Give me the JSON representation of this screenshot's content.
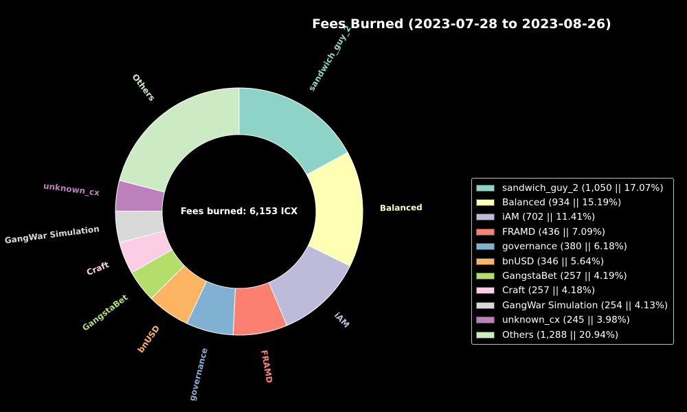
{
  "chart_data": {
    "type": "pie",
    "style": "donut",
    "title": "Fees Burned (2023-07-28 to 2023-08-26)",
    "center_label": "Fees burned: 6,153 ICX",
    "slices": [
      {
        "label": "sandwich_guy_2",
        "legend": "sandwich_guy_2 (1,050 || 17.07%)",
        "value": 1050,
        "percent": 17.07,
        "color": "#8dd3c7"
      },
      {
        "label": "Balanced",
        "legend": "Balanced (934 || 15.19%)",
        "value": 934,
        "percent": 15.19,
        "color": "#ffffb3"
      },
      {
        "label": "iAM",
        "legend": "iAM  (702 || 11.41%)",
        "value": 702,
        "percent": 11.41,
        "color": "#bebada"
      },
      {
        "label": "FRAMD",
        "legend": "FRAMD (436 || 7.09%)",
        "value": 436,
        "percent": 7.09,
        "color": "#fb8072"
      },
      {
        "label": "governance",
        "legend": "governance (380 || 6.18%)",
        "value": 380,
        "percent": 6.18,
        "color": "#80b1d3"
      },
      {
        "label": "bnUSD",
        "legend": "bnUSD (346 || 5.64%)",
        "value": 346,
        "percent": 5.64,
        "color": "#fdb462"
      },
      {
        "label": "GangstaBet",
        "legend": "GangstaBet (257 || 4.19%)",
        "value": 257,
        "percent": 4.19,
        "color": "#b3de69"
      },
      {
        "label": "Craft",
        "legend": "Craft (257 || 4.18%)",
        "value": 257,
        "percent": 4.18,
        "color": "#fccde5"
      },
      {
        "label": "GangWar Simulation",
        "legend": "GangWar Simulation (254 || 4.13%)",
        "value": 254,
        "percent": 4.13,
        "color": "#d9d9d9"
      },
      {
        "label": "unknown_cx",
        "legend": "unknown_cx (245 || 3.98%)",
        "value": 245,
        "percent": 3.98,
        "color": "#bc80bd"
      },
      {
        "label": "Others",
        "legend": "Others (1,288 || 20.94%)",
        "value": 1288,
        "percent": 20.94,
        "color": "#ccebc5"
      }
    ],
    "start_angle_deg": 90,
    "direction": "clockwise",
    "legend_position": "right"
  }
}
